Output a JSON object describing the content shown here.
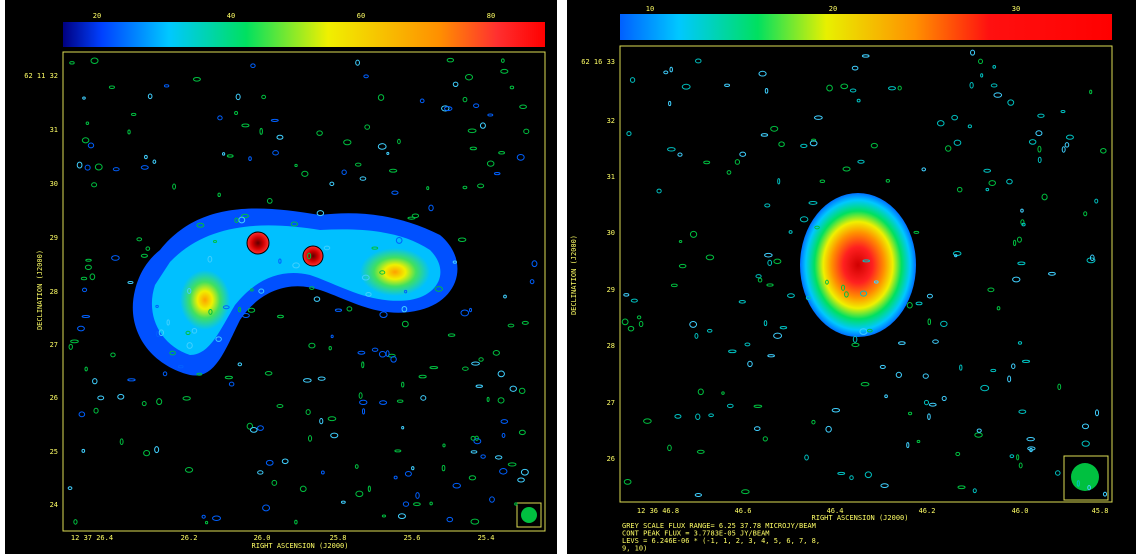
{
  "left_panel": {
    "colorbar_ticks": [
      "20",
      "40",
      "60",
      "80"
    ],
    "y_ticks": [
      "62 11 32",
      "31",
      "30",
      "29",
      "28",
      "27",
      "26",
      "25",
      "24"
    ],
    "x_ticks": [
      "12 37 26.4",
      "26.2",
      "26.0",
      "25.8",
      "25.6",
      "25.4"
    ],
    "x_axis_label": "RIGHT ASCENSION (J2000)",
    "y_axis_label": "DECLINATION (J2000)"
  },
  "right_panel": {
    "colorbar_ticks": [
      "10",
      "20",
      "30"
    ],
    "y_ticks": [
      "62 16 33",
      "32",
      "31",
      "30",
      "29",
      "28",
      "27",
      "26"
    ],
    "x_ticks": [
      "12 36 46.8",
      "46.6",
      "46.4",
      "46.2",
      "46.0",
      "45.8"
    ],
    "x_axis_label": "RIGHT ASCENSION (J2000)",
    "y_axis_label": "DECLINATION (J2000)",
    "notes": [
      "GREY SCALE FLUX RANGE= 6.25 37.78 MICROJY/BEAM",
      "CONT PEAK FLUX = 3.7783E-05 JY/BEAM",
      "LEVS = 6.246E-06 * (-1, 1, 2, 3, 4, 5, 6, 7, 8,",
      "9, 10)"
    ]
  }
}
